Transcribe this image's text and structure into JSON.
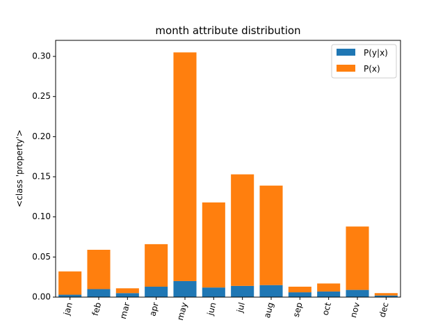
{
  "chart_data": {
    "type": "bar",
    "stacked": true,
    "title": "month attribute distribution",
    "xlabel": "",
    "ylabel": "<class 'property'>",
    "categories": [
      "jan",
      "feb",
      "mar",
      "apr",
      "may",
      "jun",
      "jul",
      "aug",
      "sep",
      "oct",
      "nov",
      "dec"
    ],
    "series": [
      {
        "name": "P(y|x)",
        "color": "#1f77b4",
        "values": [
          0.003,
          0.01,
          0.005,
          0.013,
          0.02,
          0.012,
          0.014,
          0.015,
          0.006,
          0.007,
          0.009,
          0.002
        ]
      },
      {
        "name": "P(x)",
        "color": "#ff7f0e",
        "values": [
          0.029,
          0.049,
          0.006,
          0.053,
          0.285,
          0.106,
          0.139,
          0.124,
          0.007,
          0.01,
          0.079,
          0.003
        ]
      }
    ],
    "ylim": [
      0,
      0.32
    ],
    "yticks": [
      "0.00",
      "0.05",
      "0.10",
      "0.15",
      "0.20",
      "0.25",
      "0.30"
    ],
    "ytick_values": [
      0,
      0.05,
      0.1,
      0.15,
      0.2,
      0.25,
      0.3
    ],
    "xtick_rotation": "75 degrees",
    "legend_position": "upper right",
    "grid": false
  }
}
